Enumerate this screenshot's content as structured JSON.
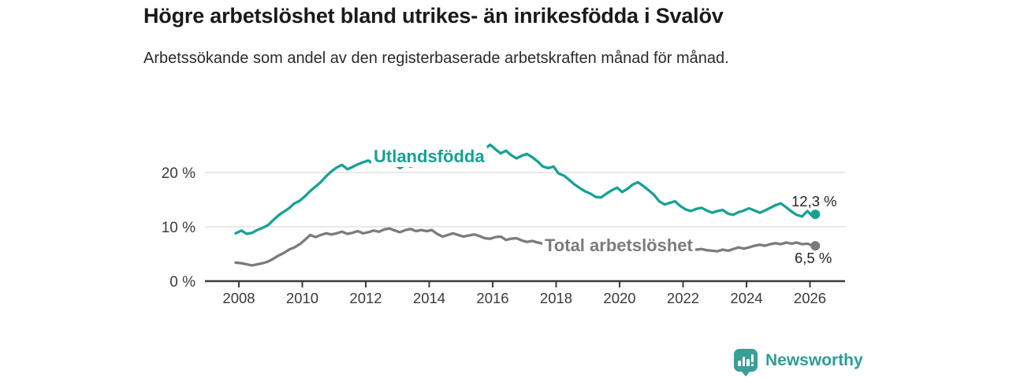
{
  "header": {
    "title": "Högre arbetslöshet bland utrikes- än inrikesfödda i Svalöv",
    "subtitle": "Arbetssökande som andel av den registerbaserade arbetskraften månad för månad."
  },
  "footer": {
    "brand": "Newsworthy",
    "logo_icon": "newsworthy-speech-bubble-bar-chart-icon"
  },
  "colors": {
    "accent_teal": "#16a194",
    "series_gray": "#7b7b7b",
    "grid": "#dcdcdc",
    "axis": "#3b3b3b",
    "logo_teal": "#38a094"
  },
  "chart_data": {
    "type": "line",
    "title": "Högre arbetslöshet bland utrikes- än inrikesfödda i Svalöv",
    "subtitle": "Arbetssökande som andel av den registerbaserade arbetskraften månad för månad.",
    "unit": "%",
    "grid": "horizontal",
    "legend_position": "inline-labels-on-lines",
    "x_axis": {
      "range": [
        2007.9,
        2027.0
      ],
      "ticks": [
        2008,
        2010,
        2012,
        2014,
        2016,
        2018,
        2020,
        2022,
        2024,
        2026
      ]
    },
    "y_axis": {
      "range": [
        0,
        26
      ],
      "ticks": [
        {
          "label": "0 %",
          "value": 0
        },
        {
          "label": "10 %",
          "value": 10
        },
        {
          "label": "20 %",
          "value": 20
        }
      ]
    },
    "series": [
      {
        "name": "Utlandsfödda",
        "color": "#16a194",
        "end_label": "12,3 %",
        "end_value": 12.3,
        "points": [
          [
            2007.9,
            8.8
          ],
          [
            2008.08,
            9.3
          ],
          [
            2008.25,
            8.7
          ],
          [
            2008.42,
            8.9
          ],
          [
            2008.58,
            9.4
          ],
          [
            2008.75,
            9.8
          ],
          [
            2008.92,
            10.3
          ],
          [
            2009.08,
            11.2
          ],
          [
            2009.25,
            12.1
          ],
          [
            2009.42,
            12.8
          ],
          [
            2009.58,
            13.4
          ],
          [
            2009.75,
            14.3
          ],
          [
            2009.92,
            14.8
          ],
          [
            2010.08,
            15.6
          ],
          [
            2010.25,
            16.6
          ],
          [
            2010.42,
            17.4
          ],
          [
            2010.58,
            18.2
          ],
          [
            2010.75,
            19.3
          ],
          [
            2010.92,
            20.2
          ],
          [
            2011.08,
            20.9
          ],
          [
            2011.25,
            21.4
          ],
          [
            2011.42,
            20.6
          ],
          [
            2011.58,
            21.0
          ],
          [
            2011.75,
            21.5
          ],
          [
            2011.92,
            21.9
          ],
          [
            2012.08,
            22.2
          ],
          [
            2012.25,
            21.5
          ],
          [
            2012.42,
            22.2
          ],
          [
            2012.58,
            22.5
          ],
          [
            2012.75,
            22.0
          ],
          [
            2012.92,
            21.4
          ],
          [
            2013.08,
            20.8
          ],
          [
            2013.25,
            21.4
          ],
          [
            2013.42,
            21.1
          ],
          [
            2013.58,
            21.6
          ],
          [
            2013.75,
            22.0
          ],
          [
            2013.92,
            22.2
          ],
          [
            2014.08,
            21.5
          ],
          [
            2014.25,
            21.2
          ],
          [
            2014.42,
            21.7
          ],
          [
            2014.58,
            22.1
          ],
          [
            2014.75,
            22.4
          ],
          [
            2014.92,
            22.2
          ],
          [
            2015.08,
            22.8
          ],
          [
            2015.25,
            23.2
          ],
          [
            2015.42,
            22.8
          ],
          [
            2015.58,
            23.5
          ],
          [
            2015.75,
            24.3
          ],
          [
            2015.92,
            25.1
          ],
          [
            2016.08,
            24.3
          ],
          [
            2016.25,
            23.5
          ],
          [
            2016.42,
            24.0
          ],
          [
            2016.58,
            23.2
          ],
          [
            2016.75,
            22.6
          ],
          [
            2016.92,
            23.1
          ],
          [
            2017.08,
            23.4
          ],
          [
            2017.25,
            22.8
          ],
          [
            2017.42,
            22.0
          ],
          [
            2017.58,
            21.1
          ],
          [
            2017.75,
            20.8
          ],
          [
            2017.92,
            21.1
          ],
          [
            2018.08,
            19.8
          ],
          [
            2018.25,
            19.4
          ],
          [
            2018.42,
            18.6
          ],
          [
            2018.58,
            17.8
          ],
          [
            2018.75,
            17.1
          ],
          [
            2018.92,
            16.5
          ],
          [
            2019.08,
            16.1
          ],
          [
            2019.25,
            15.5
          ],
          [
            2019.42,
            15.4
          ],
          [
            2019.58,
            16.1
          ],
          [
            2019.75,
            16.7
          ],
          [
            2019.92,
            17.2
          ],
          [
            2020.08,
            16.4
          ],
          [
            2020.25,
            17.0
          ],
          [
            2020.42,
            17.8
          ],
          [
            2020.58,
            18.2
          ],
          [
            2020.75,
            17.5
          ],
          [
            2020.92,
            16.7
          ],
          [
            2021.08,
            15.9
          ],
          [
            2021.25,
            14.7
          ],
          [
            2021.42,
            14.1
          ],
          [
            2021.58,
            14.4
          ],
          [
            2021.75,
            14.7
          ],
          [
            2021.92,
            13.8
          ],
          [
            2022.08,
            13.2
          ],
          [
            2022.25,
            12.9
          ],
          [
            2022.42,
            13.3
          ],
          [
            2022.58,
            13.5
          ],
          [
            2022.75,
            13.0
          ],
          [
            2022.92,
            12.6
          ],
          [
            2023.08,
            12.9
          ],
          [
            2023.25,
            13.1
          ],
          [
            2023.42,
            12.4
          ],
          [
            2023.58,
            12.2
          ],
          [
            2023.75,
            12.7
          ],
          [
            2023.92,
            13.0
          ],
          [
            2024.08,
            13.4
          ],
          [
            2024.25,
            13.0
          ],
          [
            2024.42,
            12.6
          ],
          [
            2024.58,
            13.0
          ],
          [
            2024.75,
            13.5
          ],
          [
            2024.92,
            14.0
          ],
          [
            2025.08,
            14.3
          ],
          [
            2025.25,
            13.6
          ],
          [
            2025.42,
            12.8
          ],
          [
            2025.58,
            12.2
          ],
          [
            2025.75,
            11.9
          ],
          [
            2025.92,
            12.9
          ],
          [
            2026.05,
            12.1
          ],
          [
            2026.17,
            12.3
          ]
        ]
      },
      {
        "name": "Total arbetslöshet",
        "color": "#7b7b7b",
        "end_label": "6,5 %",
        "end_value": 6.5,
        "points": [
          [
            2007.9,
            3.4
          ],
          [
            2008.08,
            3.3
          ],
          [
            2008.25,
            3.1
          ],
          [
            2008.42,
            2.9
          ],
          [
            2008.58,
            3.1
          ],
          [
            2008.75,
            3.3
          ],
          [
            2008.92,
            3.6
          ],
          [
            2009.08,
            4.1
          ],
          [
            2009.25,
            4.7
          ],
          [
            2009.42,
            5.2
          ],
          [
            2009.58,
            5.8
          ],
          [
            2009.75,
            6.2
          ],
          [
            2009.92,
            6.8
          ],
          [
            2010.08,
            7.6
          ],
          [
            2010.25,
            8.5
          ],
          [
            2010.42,
            8.1
          ],
          [
            2010.58,
            8.5
          ],
          [
            2010.75,
            8.8
          ],
          [
            2010.92,
            8.6
          ],
          [
            2011.08,
            8.8
          ],
          [
            2011.25,
            9.1
          ],
          [
            2011.42,
            8.7
          ],
          [
            2011.58,
            8.9
          ],
          [
            2011.75,
            9.2
          ],
          [
            2011.92,
            8.8
          ],
          [
            2012.08,
            9.0
          ],
          [
            2012.25,
            9.3
          ],
          [
            2012.42,
            9.1
          ],
          [
            2012.58,
            9.5
          ],
          [
            2012.75,
            9.7
          ],
          [
            2012.92,
            9.3
          ],
          [
            2013.08,
            9.0
          ],
          [
            2013.25,
            9.4
          ],
          [
            2013.42,
            9.6
          ],
          [
            2013.58,
            9.2
          ],
          [
            2013.75,
            9.4
          ],
          [
            2013.92,
            9.2
          ],
          [
            2014.08,
            9.4
          ],
          [
            2014.25,
            8.7
          ],
          [
            2014.42,
            8.2
          ],
          [
            2014.58,
            8.5
          ],
          [
            2014.75,
            8.8
          ],
          [
            2014.92,
            8.5
          ],
          [
            2015.08,
            8.2
          ],
          [
            2015.25,
            8.4
          ],
          [
            2015.42,
            8.6
          ],
          [
            2015.58,
            8.3
          ],
          [
            2015.75,
            7.9
          ],
          [
            2015.92,
            7.8
          ],
          [
            2016.08,
            8.1
          ],
          [
            2016.25,
            8.2
          ],
          [
            2016.42,
            7.6
          ],
          [
            2016.58,
            7.8
          ],
          [
            2016.75,
            7.9
          ],
          [
            2016.92,
            7.5
          ],
          [
            2017.08,
            7.2
          ],
          [
            2017.25,
            7.4
          ],
          [
            2017.42,
            7.1
          ],
          [
            2017.58,
            6.9
          ],
          [
            2017.75,
            7.0
          ],
          [
            2017.92,
            6.8
          ],
          [
            2018.08,
            6.7
          ],
          [
            2018.25,
            6.8
          ],
          [
            2018.42,
            6.5
          ],
          [
            2018.58,
            6.4
          ],
          [
            2018.75,
            6.2
          ],
          [
            2018.92,
            6.1
          ],
          [
            2019.08,
            6.0
          ],
          [
            2019.25,
            6.1
          ],
          [
            2019.42,
            6.2
          ],
          [
            2019.58,
            6.4
          ],
          [
            2019.75,
            6.5
          ],
          [
            2019.92,
            6.6
          ],
          [
            2020.08,
            6.6
          ],
          [
            2020.25,
            7.1
          ],
          [
            2020.42,
            7.5
          ],
          [
            2020.58,
            7.6
          ],
          [
            2020.75,
            7.4
          ],
          [
            2020.92,
            7.2
          ],
          [
            2021.08,
            7.0
          ],
          [
            2021.25,
            6.8
          ],
          [
            2021.42,
            6.6
          ],
          [
            2021.58,
            6.4
          ],
          [
            2021.75,
            6.2
          ],
          [
            2021.92,
            6.1
          ],
          [
            2022.08,
            6.0
          ],
          [
            2022.25,
            5.9
          ],
          [
            2022.42,
            5.8
          ],
          [
            2022.58,
            5.9
          ],
          [
            2022.75,
            5.7
          ],
          [
            2022.92,
            5.6
          ],
          [
            2023.08,
            5.5
          ],
          [
            2023.25,
            5.8
          ],
          [
            2023.42,
            5.6
          ],
          [
            2023.58,
            5.9
          ],
          [
            2023.75,
            6.2
          ],
          [
            2023.92,
            6.0
          ],
          [
            2024.08,
            6.2
          ],
          [
            2024.25,
            6.5
          ],
          [
            2024.42,
            6.7
          ],
          [
            2024.58,
            6.5
          ],
          [
            2024.75,
            6.8
          ],
          [
            2024.92,
            7.0
          ],
          [
            2025.08,
            6.8
          ],
          [
            2025.25,
            7.1
          ],
          [
            2025.42,
            6.9
          ],
          [
            2025.58,
            7.1
          ],
          [
            2025.75,
            6.8
          ],
          [
            2025.92,
            6.9
          ],
          [
            2026.05,
            6.6
          ],
          [
            2026.17,
            6.5
          ]
        ]
      }
    ]
  }
}
